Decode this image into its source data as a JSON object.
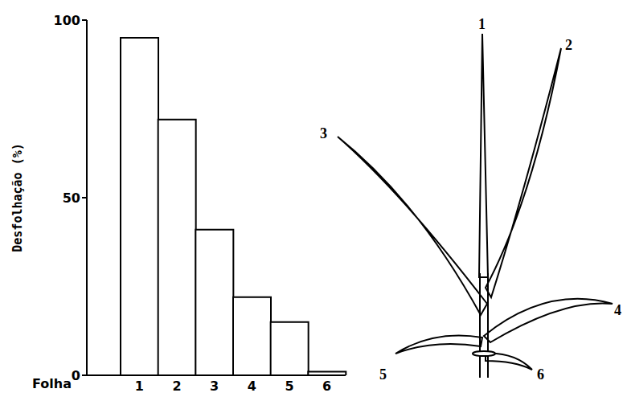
{
  "chart_data": {
    "type": "bar",
    "categories": [
      "1",
      "2",
      "3",
      "4",
      "5",
      "6"
    ],
    "values": [
      95,
      72,
      41,
      22,
      15,
      1
    ],
    "xlabel": "Folha",
    "ylabel": "Desfolhação (%)",
    "ylim": [
      0,
      100
    ],
    "yticks": [
      0,
      50,
      100
    ],
    "color": "#ffffff",
    "grid": false
  }
}
